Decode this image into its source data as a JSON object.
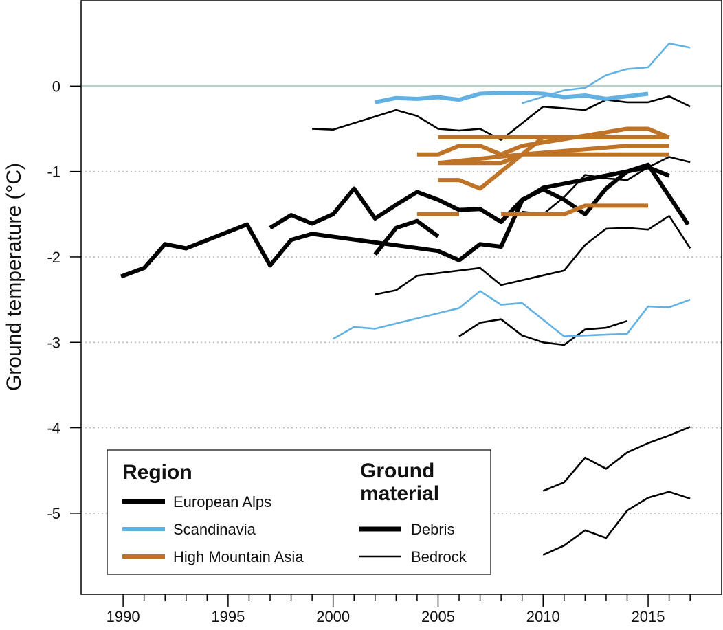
{
  "chart_data": {
    "type": "line",
    "title": "",
    "xlabel": "",
    "ylabel": "Ground temperature (°C)",
    "xlim": [
      1988,
      2018.5
    ],
    "ylim": [
      -5.95,
      1.0
    ],
    "x_ticks": [
      1990,
      1995,
      2000,
      2005,
      2010,
      2015
    ],
    "y_ticks": [
      0,
      -1,
      -2,
      -3,
      -4,
      -5
    ],
    "grid": "dotted horizontal lines at y ticks",
    "reference_line": {
      "y": 0
    },
    "colors": {
      "European Alps": "#000000",
      "Scandinavia": "#62b1e2",
      "High Mountain Asia": "#bf7326",
      "reference": "#b8cfc9",
      "grid": "#bbbbbb"
    },
    "legend": {
      "position": "bottom-left",
      "region_heading": "Region",
      "material_heading_line1": "Ground",
      "material_heading_line2": "material",
      "region_entries": [
        "European Alps",
        "Scandinavia",
        "High Mountain Asia"
      ],
      "material_entries": [
        "Debris",
        "Bedrock"
      ]
    },
    "series": [
      {
        "region": "European Alps",
        "material": "Debris",
        "x": [
          1989.9,
          1991,
          1992,
          1993,
          1995.9,
          1997,
          1998,
          1999,
          2005,
          2006,
          2007,
          2008,
          2009,
          2010,
          2014,
          2015,
          2016.9
        ],
        "y": [
          -2.23,
          -2.13,
          -1.85,
          -1.9,
          -1.62,
          -2.1,
          -1.8,
          -1.73,
          -1.93,
          -2.04,
          -1.85,
          -1.88,
          -1.34,
          -1.19,
          -1.0,
          -0.92,
          -1.62
        ]
      },
      {
        "region": "European Alps",
        "material": "Debris",
        "x": [
          1997,
          1998,
          1999,
          2000,
          2001,
          2002,
          2003,
          2004,
          2005,
          2006,
          2007,
          2008,
          2009,
          2010,
          2011,
          2012,
          2013,
          2014,
          2015,
          2016
        ],
        "y": [
          -1.66,
          -1.51,
          -1.61,
          -1.5,
          -1.2,
          -1.55,
          -1.39,
          -1.24,
          -1.33,
          -1.45,
          -1.44,
          -1.59,
          -1.33,
          -1.21,
          -1.33,
          -1.5,
          -1.2,
          -1.0,
          -0.95,
          -1.05
        ]
      },
      {
        "region": "European Alps",
        "material": "Debris",
        "x": [
          2002,
          2003,
          2004,
          2005
        ],
        "y": [
          -1.97,
          -1.66,
          -1.58,
          -1.76
        ]
      },
      {
        "region": "European Alps",
        "material": "Bedrock",
        "x": [
          1999,
          2000,
          2003,
          2004,
          2005,
          2006,
          2007,
          2008,
          2010,
          2012,
          2013,
          2014,
          2015,
          2016,
          2017
        ],
        "y": [
          -0.5,
          -0.51,
          -0.28,
          -0.35,
          -0.5,
          -0.52,
          -0.5,
          -0.63,
          -0.24,
          -0.28,
          -0.16,
          -0.19,
          -0.19,
          -0.12,
          -0.24
        ]
      },
      {
        "region": "European Alps",
        "material": "Bedrock",
        "x": [
          2002,
          2003,
          2004,
          2007,
          2008,
          2011,
          2012,
          2013,
          2014,
          2015,
          2016,
          2017
        ],
        "y": [
          -2.44,
          -2.39,
          -2.22,
          -2.13,
          -2.33,
          -2.16,
          -1.86,
          -1.67,
          -1.66,
          -1.68,
          -1.52,
          -1.9
        ]
      },
      {
        "region": "European Alps",
        "material": "Bedrock",
        "x": [
          2006,
          2007,
          2008,
          2009,
          2010,
          2011,
          2012,
          2013,
          2014
        ],
        "y": [
          -2.93,
          -2.77,
          -2.73,
          -2.92,
          -3.0,
          -3.03,
          -2.85,
          -2.83,
          -2.75
        ]
      },
      {
        "region": "European Alps",
        "material": "Bedrock",
        "x": [
          2009,
          2010,
          2011,
          2012,
          2013,
          2014,
          2015,
          2016,
          2017
        ],
        "y": [
          -1.47,
          -1.5,
          -1.3,
          -1.04,
          -1.08,
          -1.1,
          -0.95,
          -0.83,
          -0.89
        ]
      },
      {
        "region": "European Alps",
        "material": "Bedrock",
        "x": [
          2010,
          2011,
          2012,
          2013,
          2014,
          2015,
          2016,
          2017
        ],
        "y": [
          -4.74,
          -4.64,
          -4.35,
          -4.48,
          -4.29,
          -4.18,
          -4.09,
          -3.99
        ]
      },
      {
        "region": "European Alps",
        "material": "Bedrock",
        "x": [
          2010,
          2011,
          2012,
          2013,
          2014,
          2015,
          2016,
          2017
        ],
        "y": [
          -5.49,
          -5.38,
          -5.2,
          -5.29,
          -4.97,
          -4.82,
          -4.75,
          -4.83
        ]
      },
      {
        "region": "Scandinavia",
        "material": "Debris",
        "x": [
          2002,
          2003,
          2004,
          2005,
          2006,
          2007,
          2008,
          2009,
          2010,
          2011,
          2012,
          2013,
          2014,
          2015
        ],
        "y": [
          -0.19,
          -0.14,
          -0.15,
          -0.13,
          -0.16,
          -0.09,
          -0.08,
          -0.08,
          -0.09,
          -0.13,
          -0.11,
          -0.15,
          -0.12,
          -0.09
        ]
      },
      {
        "region": "Scandinavia",
        "material": "Bedrock",
        "x": [
          2009,
          2011,
          2012,
          2013,
          2014,
          2015,
          2016,
          2017
        ],
        "y": [
          -0.2,
          -0.05,
          -0.02,
          0.13,
          0.2,
          0.22,
          0.5,
          0.45
        ]
      },
      {
        "region": "Scandinavia",
        "material": "Bedrock",
        "x": [
          2000,
          2001,
          2002,
          2003,
          2006,
          2007,
          2008,
          2009,
          2011,
          2014,
          2015,
          2016,
          2017
        ],
        "y": [
          -2.96,
          -2.82,
          -2.84,
          -2.78,
          -2.6,
          -2.4,
          -2.56,
          -2.54,
          -2.93,
          -2.9,
          -2.58,
          -2.59,
          -2.5
        ]
      },
      {
        "region": "High Mountain Asia",
        "material": "Debris",
        "x": [
          2005,
          2016
        ],
        "y": [
          -0.6,
          -0.6
        ]
      },
      {
        "region": "High Mountain Asia",
        "material": "Debris",
        "x": [
          2004,
          2005,
          2006,
          2007,
          2008,
          2009,
          2014,
          2015,
          2016
        ],
        "y": [
          -0.8,
          -0.8,
          -0.7,
          -0.7,
          -0.8,
          -0.7,
          -0.5,
          -0.5,
          -0.6
        ]
      },
      {
        "region": "High Mountain Asia",
        "material": "Debris",
        "x": [
          2005,
          2008,
          2009,
          2014,
          2016
        ],
        "y": [
          -0.9,
          -0.9,
          -0.8,
          -0.7,
          -0.7
        ]
      },
      {
        "region": "High Mountain Asia",
        "material": "Debris",
        "x": [
          2005,
          2009,
          2016
        ],
        "y": [
          -0.9,
          -0.8,
          -0.8
        ]
      },
      {
        "region": "High Mountain Asia",
        "material": "Debris",
        "x": [
          2005,
          2006,
          2007,
          2010,
          2016
        ],
        "y": [
          -1.1,
          -1.1,
          -1.2,
          -0.6,
          -0.6
        ]
      },
      {
        "region": "High Mountain Asia",
        "material": "Debris",
        "x": [
          2004,
          2006
        ],
        "y": [
          -1.5,
          -1.5
        ]
      },
      {
        "region": "High Mountain Asia",
        "material": "Debris",
        "x": [
          2008,
          2011,
          2012,
          2015
        ],
        "y": [
          -1.5,
          -1.5,
          -1.4,
          -1.4
        ]
      }
    ]
  }
}
